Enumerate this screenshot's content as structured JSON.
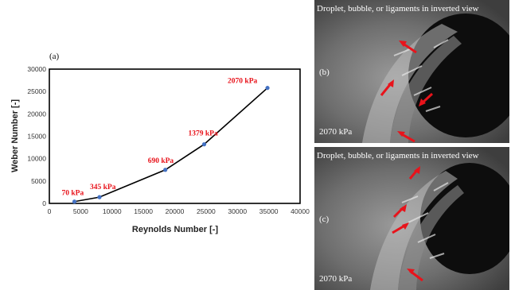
{
  "chart_data": {
    "type": "line",
    "panel_label": "(a)",
    "xlabel": "Reynolds Number [-]",
    "ylabel": "Weber Number [-]",
    "xlim": [
      0,
      40000
    ],
    "ylim": [
      0,
      30000
    ],
    "x_ticks": [
      0,
      5000,
      10000,
      15000,
      20000,
      25000,
      30000,
      35000,
      40000
    ],
    "y_ticks": [
      0,
      5000,
      10000,
      15000,
      20000,
      25000,
      30000
    ],
    "grid": false,
    "line_color": "#000000",
    "marker_color": "#4472c4",
    "label_color": "#e8131b",
    "series": [
      {
        "x": [
          4000,
          8000,
          18500,
          24700,
          34800
        ],
        "y": [
          400,
          1400,
          7500,
          13200,
          25800
        ],
        "point_labels": [
          "70 kPa",
          "345 kPa",
          "690 kPa",
          "1379 kPa",
          "2070 kPa"
        ]
      }
    ]
  },
  "photos": [
    {
      "caption": "Droplet, bubble, or ligaments in inverted view",
      "letter": "(b)",
      "pressure": "2070 kPa"
    },
    {
      "caption": "Droplet, bubble, or ligaments in inverted view",
      "letter": "(c)",
      "pressure": "2070 kPa"
    }
  ],
  "arrow_color": "#e8131b"
}
